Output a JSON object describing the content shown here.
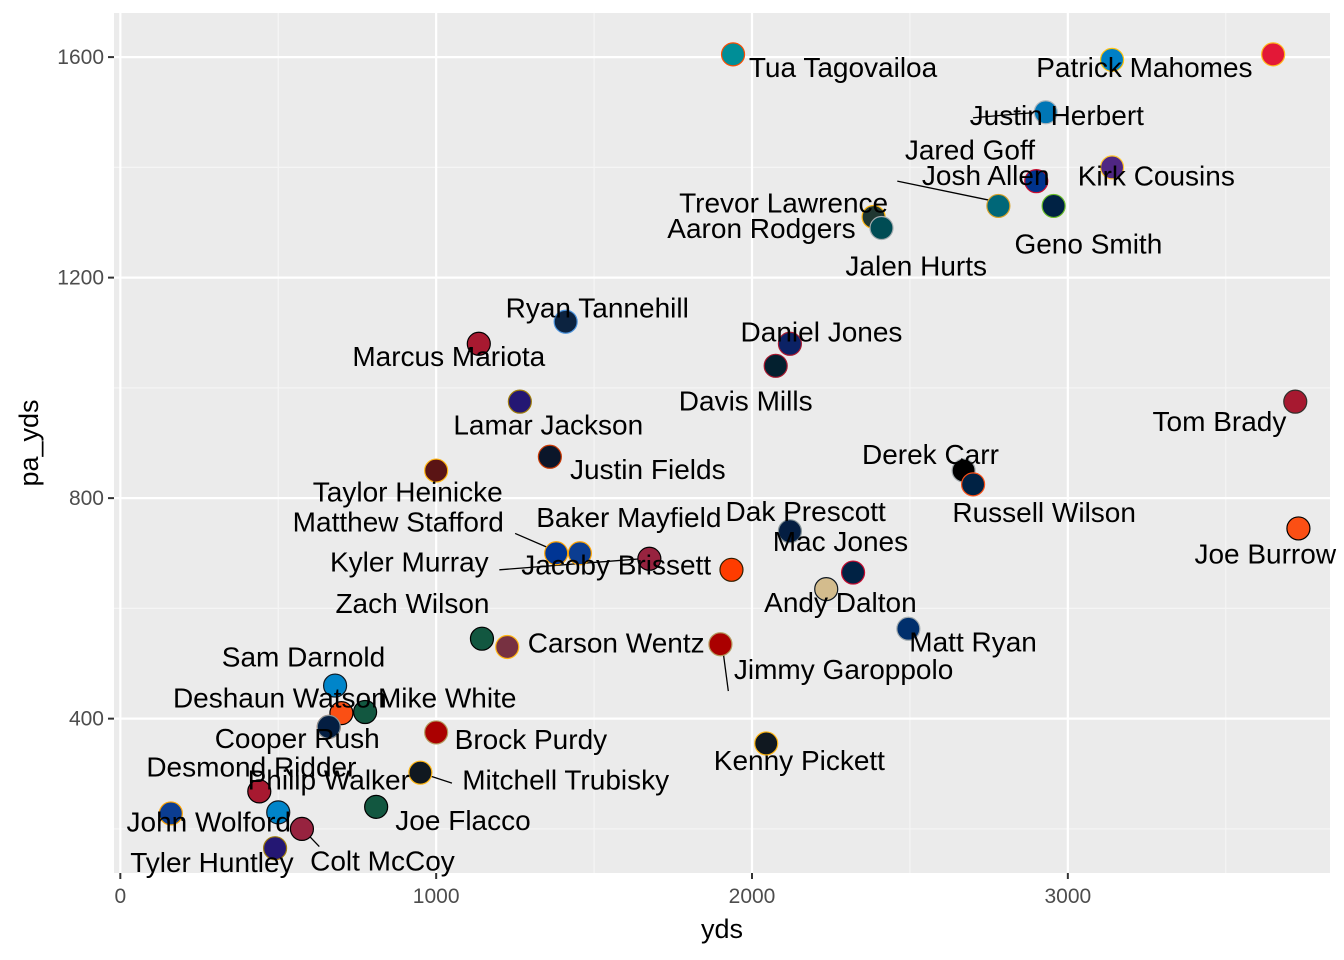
{
  "chart_data": {
    "type": "scatter",
    "title": "",
    "xlabel": "yds",
    "ylabel": "pa_yds",
    "xlim": [
      -20,
      3830
    ],
    "ylim": [
      120,
      1680
    ],
    "x_ticks": [
      0,
      1000,
      2000,
      3000
    ],
    "y_ticks": [
      400,
      800,
      1200,
      1600
    ],
    "grid": true,
    "points": [
      {
        "label": "Tua Tagovailoa",
        "x": 1940,
        "y": 1605,
        "color": "#008E97",
        "outline": "#FC4C02",
        "lx": 1990,
        "ly": 1582,
        "anchor": "start"
      },
      {
        "label": "Patrick Mahomes",
        "x": 3140,
        "y": 1595,
        "color": "#0080C6",
        "outline": "#FFC20E",
        "lx": 2900,
        "ly": 1582,
        "anchor": "start"
      },
      {
        "label": "",
        "x": 3650,
        "y": 1605,
        "color": "#E31837",
        "outline": "#FFB81C"
      },
      {
        "label": "Justin Herbert",
        "x": 2930,
        "y": 1500,
        "color": "#0076B6",
        "outline": "#B0B7BC",
        "lx": 2965,
        "ly": 1495,
        "anchor": "middle"
      },
      {
        "label": "Jared Goff",
        "x": 2930,
        "y": 1500,
        "lx": 2690,
        "ly": 1432,
        "anchor": "middle",
        "seg": [
          2700,
          1490,
          2905,
          1500
        ]
      },
      {
        "label": "Kirk Cousins",
        "x": 3140,
        "y": 1400,
        "color": "#4F2683",
        "outline": "#FFC62F",
        "lx": 3280,
        "ly": 1385,
        "anchor": "middle"
      },
      {
        "label": "Josh Allen",
        "x": 2900,
        "y": 1375,
        "color": "#00338D",
        "outline": "#C60C30",
        "lx": 2740,
        "ly": 1386,
        "anchor": "middle"
      },
      {
        "label": "Trevor Lawrence",
        "x": 2780,
        "y": 1330,
        "color": "#006778",
        "outline": "#D7A22A",
        "lx": 2100,
        "ly": 1336,
        "anchor": "middle",
        "seg": [
          2460,
          1375,
          2755,
          1340
        ]
      },
      {
        "label": "Geno Smith",
        "x": 2955,
        "y": 1330,
        "color": "#002244",
        "outline": "#69BE28",
        "lx": 3065,
        "ly": 1262,
        "anchor": "middle"
      },
      {
        "label": "Aaron Rodgers",
        "x": 2385,
        "y": 1310,
        "color": "#203731",
        "outline": "#FFB612",
        "lx": 2030,
        "ly": 1290,
        "anchor": "middle"
      },
      {
        "label": "Jalen Hurts",
        "x": 2410,
        "y": 1290,
        "color": "#004C54",
        "outline": "#A5ACAF",
        "lx": 2520,
        "ly": 1222,
        "anchor": "middle"
      },
      {
        "label": "Ryan Tannehill",
        "x": 1410,
        "y": 1120,
        "color": "#0C2340",
        "outline": "#4B92DB",
        "lx": 1510,
        "ly": 1146,
        "anchor": "middle"
      },
      {
        "label": "Daniel Jones",
        "x": 2120,
        "y": 1080,
        "color": "#0B2265",
        "outline": "#A71930",
        "lx": 2220,
        "ly": 1102,
        "anchor": "middle"
      },
      {
        "label": "Marcus Mariota",
        "x": 1135,
        "y": 1080,
        "color": "#A71930",
        "outline": "#000000",
        "lx": 1040,
        "ly": 1058,
        "anchor": "middle"
      },
      {
        "label": "Davis Mills",
        "x": 2075,
        "y": 1040,
        "color": "#03202F",
        "outline": "#A71930",
        "lx": 1980,
        "ly": 977,
        "anchor": "middle"
      },
      {
        "label": "Tom Brady",
        "x": 3720,
        "y": 975,
        "color": "#A71930",
        "outline": "#322F2B",
        "lx": 3480,
        "ly": 940,
        "anchor": "middle"
      },
      {
        "label": "Lamar Jackson",
        "x": 1265,
        "y": 975,
        "color": "#241773",
        "outline": "#9E7C0C",
        "lx": 1355,
        "ly": 934,
        "anchor": "middle"
      },
      {
        "label": "Justin Fields",
        "x": 1360,
        "y": 875,
        "color": "#0B162A",
        "outline": "#C83803",
        "lx": 1670,
        "ly": 853,
        "anchor": "middle"
      },
      {
        "label": "Taylor Heinicke",
        "x": 1000,
        "y": 850,
        "color": "#5A1414",
        "outline": "#FFB612",
        "lx": 910,
        "ly": 812,
        "anchor": "middle"
      },
      {
        "label": "Derek Carr",
        "x": 2670,
        "y": 850,
        "color": "#000000",
        "outline": "#A5ACAF",
        "lx": 2565,
        "ly": 880,
        "anchor": "middle"
      },
      {
        "label": "Russell Wilson",
        "x": 2700,
        "y": 825,
        "color": "#002244",
        "outline": "#FB4F14",
        "lx": 2925,
        "ly": 775,
        "anchor": "middle"
      },
      {
        "label": "Joe Burrow",
        "x": 3730,
        "y": 745,
        "color": "#FB4F14",
        "outline": "#000000",
        "lx": 3625,
        "ly": 700,
        "anchor": "middle"
      },
      {
        "label": "Dak Prescott",
        "x": 2120,
        "y": 740,
        "color": "#041E42",
        "outline": "#869397",
        "lx": 2170,
        "ly": 777,
        "anchor": "middle"
      },
      {
        "label": "Matthew Stafford",
        "x": 1380,
        "y": 700,
        "color": "#003594",
        "outline": "#FFA300",
        "lx": 880,
        "ly": 758,
        "anchor": "middle",
        "seg": [
          1250,
          736,
          1355,
          710
        ]
      },
      {
        "label": "Baker Mayfield",
        "x": 1455,
        "y": 700,
        "color": "#0B3D91",
        "outline": "#FFA300",
        "lx": 1610,
        "ly": 766,
        "anchor": "middle"
      },
      {
        "label": "Kyler Murray",
        "x": 1675,
        "y": 690,
        "color": "#97233F",
        "outline": "#000000",
        "lx": 915,
        "ly": 685,
        "anchor": "middle",
        "seg": [
          1200,
          670,
          1650,
          690
        ]
      },
      {
        "label": "Jacoby Brissett",
        "x": 1935,
        "y": 670,
        "color": "#FF3C00",
        "outline": "#311D00",
        "lx": 1570,
        "ly": 680,
        "anchor": "middle"
      },
      {
        "label": "Mac Jones",
        "x": 2320,
        "y": 665,
        "color": "#002244",
        "outline": "#C60C30",
        "lx": 2280,
        "ly": 722,
        "anchor": "middle"
      },
      {
        "label": "",
        "x": 2235,
        "y": 635,
        "color": "#D3BC8D",
        "outline": "#101820"
      },
      {
        "label": "Andy Dalton",
        "x": 2495,
        "y": 563,
        "color": "#002F6C",
        "outline": "#A2AAAD",
        "lx": 2280,
        "ly": 612,
        "anchor": "middle"
      },
      {
        "label": "Matt Ryan",
        "x": 2495,
        "y": 563,
        "lx": 2700,
        "ly": 540,
        "anchor": "middle"
      },
      {
        "label": "Zach Wilson",
        "x": 1145,
        "y": 545,
        "color": "#125740",
        "outline": "#000000",
        "lx": 925,
        "ly": 610,
        "anchor": "middle"
      },
      {
        "label": "Carson Wentz",
        "x": 1225,
        "y": 530,
        "color": "#773141",
        "outline": "#FFB612",
        "lx": 1570,
        "ly": 538,
        "anchor": "middle"
      },
      {
        "label": "Jimmy Garoppolo",
        "x": 1900,
        "y": 535,
        "color": "#AA0000",
        "outline": "#B3995D",
        "lx": 2290,
        "ly": 490,
        "anchor": "middle",
        "seg": [
          1925,
          450,
          1910,
          515
        ]
      },
      {
        "label": "Sam Darnold",
        "x": 680,
        "y": 460,
        "color": "#0085CA",
        "outline": "#101820",
        "lx": 580,
        "ly": 513,
        "anchor": "middle"
      },
      {
        "label": "",
        "x": 700,
        "y": 410,
        "color": "#FB4F14",
        "outline": "#000000"
      },
      {
        "label": "Mike White",
        "x": 775,
        "y": 412,
        "color": "#125740",
        "outline": "#000000",
        "lx": 1035,
        "ly": 438,
        "anchor": "middle"
      },
      {
        "label": "Deshaun Watson",
        "x": 660,
        "y": 385,
        "color": "#311D00",
        "outline": "#FF3C00",
        "lx": 505,
        "ly": 438,
        "anchor": "middle"
      },
      {
        "label": "Cooper Rush",
        "x": 660,
        "y": 385,
        "color": "#041E42",
        "outline": "#869397",
        "lx": 560,
        "ly": 365,
        "anchor": "middle"
      },
      {
        "label": "Brock Purdy",
        "x": 1000,
        "y": 375,
        "color": "#AA0000",
        "outline": "#B3995D",
        "lx": 1300,
        "ly": 363,
        "anchor": "middle"
      },
      {
        "label": "Kenny Pickett",
        "x": 2045,
        "y": 355,
        "color": "#101820",
        "outline": "#FFB612",
        "lx": 2150,
        "ly": 325,
        "anchor": "middle"
      },
      {
        "label": "Mitchell Trubisky",
        "x": 950,
        "y": 302,
        "color": "#101820",
        "outline": "#FFB612",
        "lx": 1410,
        "ly": 290,
        "anchor": "middle",
        "seg": [
          1050,
          283,
          975,
          297
        ]
      },
      {
        "label": "Philip Walker",
        "x": 950,
        "y": 302,
        "lx": 660,
        "ly": 290,
        "anchor": "middle"
      },
      {
        "label": "Desmond Ridder",
        "x": 440,
        "y": 268,
        "color": "#A71930",
        "outline": "#000000",
        "lx": 415,
        "ly": 313,
        "anchor": "middle"
      },
      {
        "label": "Joe Flacco",
        "x": 810,
        "y": 240,
        "color": "#125740",
        "outline": "#000000",
        "lx": 1085,
        "ly": 216,
        "anchor": "middle"
      },
      {
        "label": "",
        "x": 160,
        "y": 228,
        "color": "#0B3D91",
        "outline": "#FFA300"
      },
      {
        "label": "",
        "x": 500,
        "y": 230,
        "color": "#0085CA",
        "outline": "#101820"
      },
      {
        "label": "John Wolford",
        "x": 160,
        "y": 228,
        "lx": 280,
        "ly": 213,
        "anchor": "middle",
        "seg": [
          198,
          215,
          180,
          222
        ]
      },
      {
        "label": "Colt McCoy",
        "x": 575,
        "y": 200,
        "color": "#97233F",
        "outline": "#000000",
        "lx": 830,
        "ly": 143,
        "anchor": "middle",
        "seg": [
          630,
          168,
          585,
          195
        ]
      },
      {
        "label": "Tyler Huntley",
        "x": 490,
        "y": 165,
        "color": "#241773",
        "outline": "#9E7C0C",
        "lx": 290,
        "ly": 140,
        "anchor": "middle"
      }
    ]
  }
}
